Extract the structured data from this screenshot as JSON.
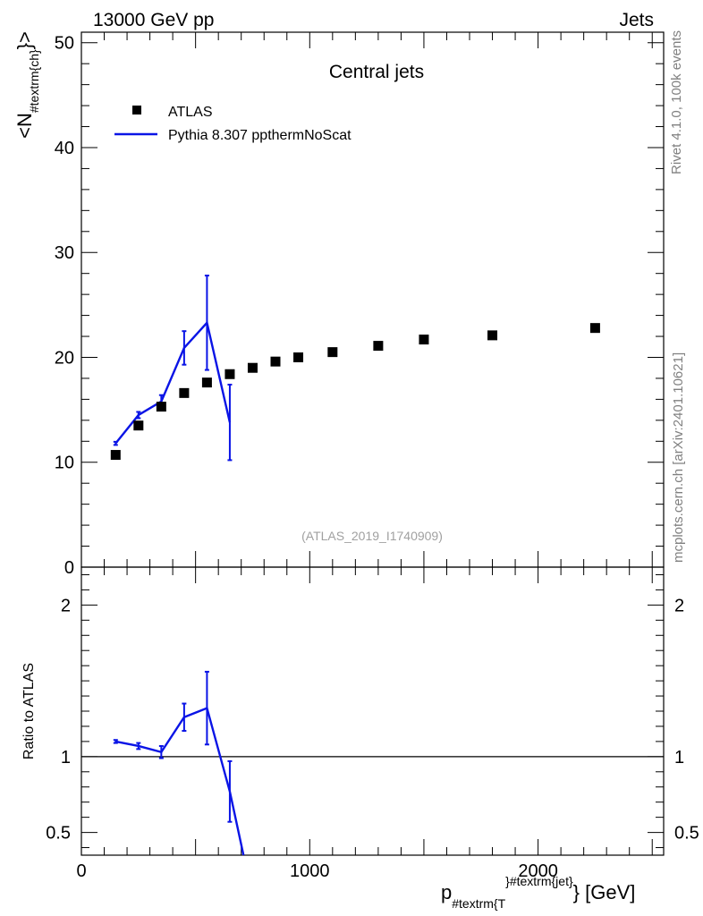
{
  "header": {
    "left": "13000 GeV pp",
    "right": "Jets"
  },
  "side_labels": {
    "rivet": "Rivet 4.1.0,  100k events",
    "mcplots": "mcplots.cern.ch [arXiv:2401.10621]"
  },
  "colors": {
    "data": "#000000",
    "mc": "#0a14e6"
  },
  "chart_data": [
    {
      "type": "scatter",
      "title": "Central jets",
      "watermark": "(ATLAS_2019_I1740909)",
      "ylabel": "<N#textrm{ch}>",
      "ylabel_main": "<N",
      "ylabel_sub": "#textrm{ch}",
      "ylabel_tail": "}>",
      "xlim": [
        0,
        2550
      ],
      "ylim": [
        0,
        51
      ],
      "yticks": [
        0,
        10,
        20,
        30,
        40,
        50
      ],
      "ytick_labels": [
        "0",
        "10",
        "20",
        "30",
        "40",
        "50"
      ],
      "legend": [
        "ATLAS",
        "Pythia 8.307 ppthermNoScat"
      ],
      "legend_position": "top-left",
      "series": [
        {
          "name": "ATLAS",
          "style": "marker-square",
          "x": [
            150,
            250,
            350,
            450,
            550,
            650,
            750,
            850,
            950,
            1100,
            1300,
            1500,
            1800,
            2250
          ],
          "y": [
            10.7,
            13.5,
            15.3,
            16.6,
            17.6,
            18.4,
            19.0,
            19.6,
            20.0,
            20.5,
            21.1,
            21.7,
            22.1,
            22.8
          ]
        },
        {
          "name": "Pythia 8.307 ppthermNoScat",
          "style": "line",
          "x": [
            150,
            250,
            350,
            450,
            550,
            650
          ],
          "y": [
            11.8,
            14.5,
            15.8,
            20.9,
            23.3,
            13.8
          ],
          "yerr": [
            0.15,
            0.3,
            0.6,
            1.6,
            4.5,
            3.6
          ]
        }
      ]
    },
    {
      "type": "line",
      "ylabel": "Ratio to ATLAS",
      "xlabel": "p#textrm{T}^#textrm{jet} [GeV]",
      "xlabel_main": "p",
      "xlabel_sub": "#textrm{T",
      "xlabel_sup": "}#textrm{jet}",
      "xlabel_tail": "} [GeV]",
      "xlim": [
        0,
        2550
      ],
      "ylim": [
        0.35,
        2.25
      ],
      "yticks": [
        0.5,
        1,
        2
      ],
      "ytick_labels": [
        "0.5",
        "1",
        "2"
      ],
      "xticks": [
        0,
        1000,
        2000
      ],
      "xtick_labels": [
        "0",
        "1000",
        "2000"
      ],
      "reference_line": 1,
      "series": [
        {
          "name": "Pythia 8.307 ppthermNoScat",
          "x": [
            150,
            250,
            350,
            450,
            550,
            650,
            710
          ],
          "y": [
            1.1,
            1.07,
            1.03,
            1.26,
            1.32,
            0.77,
            0.35
          ],
          "yerr": [
            0.01,
            0.02,
            0.04,
            0.09,
            0.24,
            0.2,
            0
          ]
        }
      ]
    }
  ]
}
